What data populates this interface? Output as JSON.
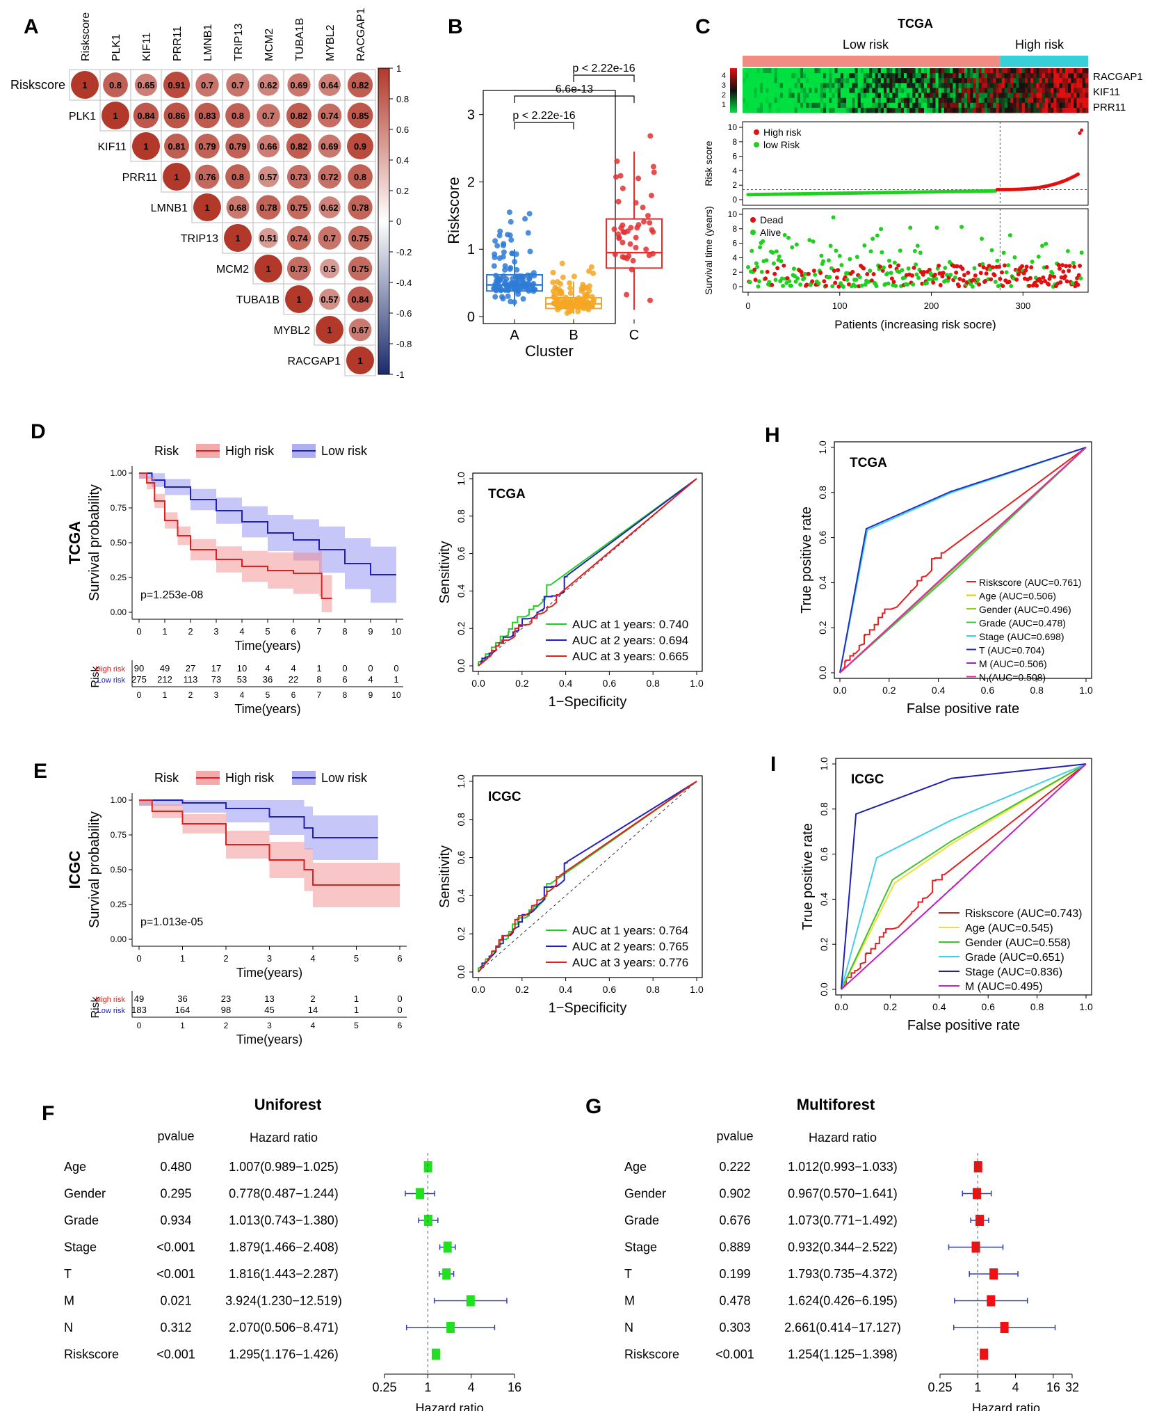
{
  "panels": {
    "A": "A",
    "B": "B",
    "C": "C",
    "D": "D",
    "E": "E",
    "F": "F",
    "G": "G",
    "H": "H",
    "I": "I"
  },
  "corr": {
    "labels": [
      "Riskscore",
      "PLK1",
      "KIF11",
      "PRR11",
      "LMNB1",
      "TRIP13",
      "MCM2",
      "TUBA1B",
      "MYBL2",
      "RACGAP1"
    ],
    "matrix": [
      [
        1,
        0.8,
        0.65,
        0.91,
        0.7,
        0.7,
        0.62,
        0.69,
        0.64,
        0.82
      ],
      [
        0,
        1,
        0.84,
        0.86,
        0.83,
        0.8,
        0.7,
        0.82,
        0.74,
        0.85
      ],
      [
        0,
        0,
        1,
        0.81,
        0.79,
        0.79,
        0.66,
        0.82,
        0.69,
        0.9
      ],
      [
        0,
        0,
        0,
        1,
        0.76,
        0.8,
        0.57,
        0.73,
        0.72,
        0.8
      ],
      [
        0,
        0,
        0,
        0,
        1,
        0.68,
        0.78,
        0.75,
        0.62,
        0.78
      ],
      [
        0,
        0,
        0,
        0,
        0,
        1,
        0.51,
        0.74,
        0.7,
        0.75
      ],
      [
        0,
        0,
        0,
        0,
        0,
        0,
        1,
        0.73,
        0.5,
        0.75
      ],
      [
        0,
        0,
        0,
        0,
        0,
        0,
        0,
        1,
        0.57,
        0.84
      ],
      [
        0,
        0,
        0,
        0,
        0,
        0,
        0,
        0,
        1,
        0.67
      ],
      [
        0,
        0,
        0,
        0,
        0,
        0,
        0,
        0,
        0,
        1
      ]
    ],
    "colorbar_ticks": [
      "1",
      "0.8",
      "0.6",
      "0.4",
      "0.2",
      "0",
      "-0.2",
      "-0.4",
      "-0.6",
      "-0.8",
      "-1"
    ],
    "colors": {
      "high": "#b2382a",
      "mid": "#ffffff",
      "low": "#1a2a6c"
    }
  },
  "boxplot": {
    "ylabel": "Riskscore",
    "xlabel": "Cluster",
    "groups": [
      {
        "name": "A",
        "color": "#2e7bd6",
        "q1": 0.38,
        "median": 0.47,
        "q3": 0.62,
        "lo": 0.15,
        "hi": 1.0,
        "n": 120,
        "outmax": 1.6
      },
      {
        "name": "B",
        "color": "#f5a623",
        "q1": 0.12,
        "median": 0.19,
        "q3": 0.28,
        "lo": 0.04,
        "hi": 0.52,
        "n": 110,
        "outmax": 0.85
      },
      {
        "name": "C",
        "color": "#e03030",
        "q1": 0.72,
        "median": 0.95,
        "q3": 1.45,
        "lo": 0.1,
        "hi": 2.45,
        "n": 45,
        "outmax": 2.9
      }
    ],
    "yticks": [
      "0",
      "1",
      "2",
      "3"
    ],
    "comparisons": [
      "p < 2.22e-16",
      "6.6e-13",
      "p < 2.22e-16"
    ]
  },
  "riskplot": {
    "title": "TCGA",
    "low_label": "Low risk",
    "high_label": "High risk",
    "genes": [
      "RACGAP1",
      "KIF11",
      "PRR11"
    ],
    "heat_scale": [
      "4",
      "3",
      "2",
      "1"
    ],
    "legend1": [
      "High risk",
      "low Risk"
    ],
    "legend2": [
      "Dead",
      "Alive"
    ],
    "ylabel1": "Risk score",
    "ylabel2": "Survival time (years)",
    "xlabel": "Patients (increasing risk socre)",
    "xticks": [
      "0",
      "100",
      "200",
      "300"
    ],
    "y1ticks": [
      "0",
      "2",
      "4",
      "6",
      "8",
      "10"
    ],
    "y2ticks": [
      "0",
      "2",
      "4",
      "6",
      "8",
      "10"
    ],
    "cutoff": 272,
    "total": 365
  },
  "km_tcga": {
    "cohort": "TCGA",
    "legend_title": "Risk",
    "high": "High risk",
    "low": "Low risk",
    "pvalue": "p=1.253e-08",
    "ylabel": "Survival probability",
    "xlabel": "Time(years)",
    "xticks": [
      "0",
      "1",
      "2",
      "3",
      "4",
      "5",
      "6",
      "7",
      "8",
      "9",
      "10"
    ],
    "yticks": [
      "0.00",
      "0.25",
      "0.50",
      "0.75",
      "1.00"
    ],
    "risk_label": "Risk",
    "high_row": [
      "90",
      "49",
      "27",
      "17",
      "10",
      "4",
      "4",
      "1",
      "0",
      "0",
      "0"
    ],
    "low_row": [
      "275",
      "212",
      "113",
      "73",
      "53",
      "36",
      "22",
      "8",
      "6",
      "4",
      "1"
    ],
    "high_curve": [
      [
        0,
        1
      ],
      [
        0.3,
        0.93
      ],
      [
        0.6,
        0.8
      ],
      [
        1,
        0.66
      ],
      [
        1.5,
        0.55
      ],
      [
        2,
        0.45
      ],
      [
        3,
        0.38
      ],
      [
        4,
        0.33
      ],
      [
        5,
        0.3
      ],
      [
        6,
        0.28
      ],
      [
        7,
        0.28
      ],
      [
        7.1,
        0.1
      ],
      [
        7.5,
        0.1
      ]
    ],
    "low_curve": [
      [
        0,
        1
      ],
      [
        0.5,
        0.95
      ],
      [
        1,
        0.9
      ],
      [
        2,
        0.81
      ],
      [
        3,
        0.73
      ],
      [
        4,
        0.65
      ],
      [
        5,
        0.57
      ],
      [
        6,
        0.52
      ],
      [
        7,
        0.45
      ],
      [
        8,
        0.35
      ],
      [
        9,
        0.27
      ],
      [
        10,
        0.27
      ]
    ]
  },
  "roc_tcga": {
    "cohort": "TCGA",
    "xlabel": "1−Specificity",
    "ylabel": "Sensitivity",
    "ticks": [
      "0.0",
      "0.2",
      "0.4",
      "0.6",
      "0.8",
      "1.0"
    ],
    "legend": [
      "AUC at 1 years: 0.740",
      "AUC at 2 years: 0.694",
      "AUC at 3 years: 0.665"
    ]
  },
  "km_icgc": {
    "cohort": "ICGC",
    "legend_title": "Risk",
    "high": "High risk",
    "low": "Low risk",
    "pvalue": "p=1.013e-05",
    "ylabel": "Survival probability",
    "xlabel": "Time(years)",
    "xticks": [
      "0",
      "1",
      "2",
      "3",
      "4",
      "5",
      "6"
    ],
    "yticks": [
      "0.00",
      "0.25",
      "0.50",
      "0.75",
      "1.00"
    ],
    "risk_label": "Risk",
    "high_row": [
      "49",
      "36",
      "23",
      "13",
      "2",
      "1",
      "0"
    ],
    "low_row": [
      "183",
      "164",
      "98",
      "45",
      "14",
      "1",
      "0"
    ],
    "high_curve": [
      [
        0,
        1
      ],
      [
        0.3,
        0.92
      ],
      [
        1,
        0.83
      ],
      [
        2,
        0.68
      ],
      [
        3,
        0.57
      ],
      [
        3.8,
        0.5
      ],
      [
        4,
        0.39
      ],
      [
        6,
        0.39
      ]
    ],
    "low_curve": [
      [
        0,
        1
      ],
      [
        1,
        0.98
      ],
      [
        2,
        0.94
      ],
      [
        3,
        0.88
      ],
      [
        3.8,
        0.8
      ],
      [
        4,
        0.73
      ],
      [
        5.5,
        0.73
      ]
    ]
  },
  "roc_icgc": {
    "cohort": "ICGC",
    "xlabel": "1−Specificity",
    "ylabel": "Sensitivity",
    "ticks": [
      "0.0",
      "0.2",
      "0.4",
      "0.6",
      "0.8",
      "1.0"
    ],
    "legend": [
      "AUC at 1 years: 0.764",
      "AUC at 2 years: 0.765",
      "AUC at 3 years: 0.776"
    ]
  },
  "roc_multi_tcga": {
    "cohort": "TCGA",
    "xlabel": "False positive rate",
    "ylabel": "True positive rate",
    "ticks": [
      "0.0",
      "0.2",
      "0.4",
      "0.6",
      "0.8",
      "1.0"
    ],
    "legend": [
      "Riskscore (AUC=0.761)",
      "Age (AUC=0.506)",
      "Gender (AUC=0.496)",
      "Grade (AUC=0.478)",
      "Stage (AUC=0.698)",
      "T (AUC=0.704)",
      "M (AUC=0.506)",
      "N (AUC=0.508)"
    ],
    "colors": [
      "#e02020",
      "#f0c000",
      "#8ad020",
      "#40c040",
      "#40d0e8",
      "#2030c0",
      "#a020c0",
      "#e030a0"
    ]
  },
  "roc_multi_icgc": {
    "cohort": "ICGC",
    "xlabel": "False positive rate",
    "ylabel": "True positive rate",
    "ticks": [
      "0.0",
      "0.2",
      "0.4",
      "0.6",
      "0.8",
      "1.0"
    ],
    "legend": [
      "Riskscore (AUC=0.743)",
      "Age (AUC=0.545)",
      "Gender (AUC=0.558)",
      "Grade (AUC=0.651)",
      "Stage (AUC=0.836)",
      "M (AUC=0.495)"
    ],
    "colors": [
      "#e02020",
      "#f0e030",
      "#40c030",
      "#40d0e8",
      "#2020b0",
      "#c020c0"
    ]
  },
  "uniforest": {
    "title": "Uniforest",
    "col_p": "pvalue",
    "col_hr": "Hazard ratio",
    "xlabel": "Hazard ratio",
    "xticks": [
      "0.25",
      "1",
      "4",
      "16"
    ],
    "rows": [
      {
        "name": "Age",
        "p": "0.480",
        "hr": "1.007(0.989−1.025)",
        "e": 1.007,
        "l": 0.989,
        "h": 1.025
      },
      {
        "name": "Gender",
        "p": "0.295",
        "hr": "0.778(0.487−1.244)",
        "e": 0.778,
        "l": 0.487,
        "h": 1.244
      },
      {
        "name": "Grade",
        "p": "0.934",
        "hr": "1.013(0.743−1.380)",
        "e": 1.013,
        "l": 0.743,
        "h": 1.38
      },
      {
        "name": "Stage",
        "p": "<0.001",
        "hr": "1.879(1.466−2.408)",
        "e": 1.879,
        "l": 1.466,
        "h": 2.408
      },
      {
        "name": "T",
        "p": "<0.001",
        "hr": "1.816(1.443−2.287)",
        "e": 1.816,
        "l": 1.443,
        "h": 2.287
      },
      {
        "name": "M",
        "p": "0.021",
        "hr": "3.924(1.230−12.519)",
        "e": 3.924,
        "l": 1.23,
        "h": 12.519
      },
      {
        "name": "N",
        "p": "0.312",
        "hr": "2.070(0.506−8.471)",
        "e": 2.07,
        "l": 0.506,
        "h": 8.471
      },
      {
        "name": "Riskscore",
        "p": "<0.001",
        "hr": "1.295(1.176−1.426)",
        "e": 1.295,
        "l": 1.176,
        "h": 1.426
      }
    ]
  },
  "multiforest": {
    "title": "Multiforest",
    "col_p": "pvalue",
    "col_hr": "Hazard ratio",
    "xlabel": "Hazard ratio",
    "xticks": [
      "0.25",
      "1",
      "4",
      "16",
      "32"
    ],
    "rows": [
      {
        "name": "Age",
        "p": "0.222",
        "hr": "1.012(0.993−1.033)",
        "e": 1.012,
        "l": 0.993,
        "h": 1.033
      },
      {
        "name": "Gender",
        "p": "0.902",
        "hr": "0.967(0.570−1.641)",
        "e": 0.967,
        "l": 0.57,
        "h": 1.641
      },
      {
        "name": "Grade",
        "p": "0.676",
        "hr": "1.073(0.771−1.492)",
        "e": 1.073,
        "l": 0.771,
        "h": 1.492
      },
      {
        "name": "Stage",
        "p": "0.889",
        "hr": "0.932(0.344−2.522)",
        "e": 0.932,
        "l": 0.344,
        "h": 2.522
      },
      {
        "name": "T",
        "p": "0.199",
        "hr": "1.793(0.735−4.372)",
        "e": 1.793,
        "l": 0.735,
        "h": 4.372
      },
      {
        "name": "M",
        "p": "0.478",
        "hr": "1.624(0.426−6.195)",
        "e": 1.624,
        "l": 0.426,
        "h": 6.195
      },
      {
        "name": "N",
        "p": "0.303",
        "hr": "2.661(0.414−17.127)",
        "e": 2.661,
        "l": 0.414,
        "h": 17.127
      },
      {
        "name": "Riskscore",
        "p": "<0.001",
        "hr": "1.254(1.125−1.398)",
        "e": 1.254,
        "l": 1.125,
        "h": 1.398
      }
    ]
  }
}
